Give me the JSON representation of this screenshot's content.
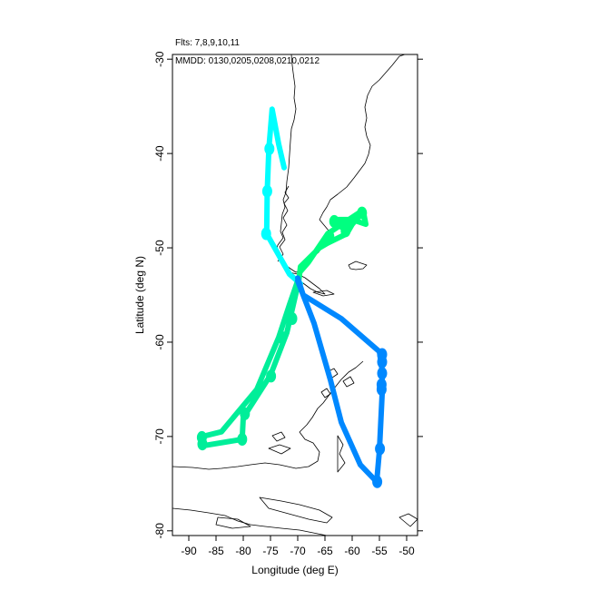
{
  "header": {
    "flights_line": "Flts: 7,8,9,10,11",
    "dates_line": "MMDD: 0130,0205,0208,0210,0212"
  },
  "chart_data": {
    "type": "map",
    "xlabel": "Longitude (deg E)",
    "ylabel": "Latitude (deg N)",
    "xlim": [
      -93,
      -48
    ],
    "ylim": [
      -80.5,
      -29.5
    ],
    "x_ticks": [
      -90,
      -85,
      -80,
      -75,
      -70,
      -65,
      -60,
      -55,
      -50
    ],
    "y_ticks": [
      -30,
      -40,
      -50,
      -60,
      -70,
      -80
    ],
    "grid": false,
    "flights": [
      {
        "color": "#00ffff",
        "points": [
          [
            -72.5,
            -41.5
          ],
          [
            -73.5,
            -39
          ],
          [
            -74.7,
            -35.3
          ],
          [
            -75.3,
            -39.5
          ],
          [
            -75.6,
            -44
          ],
          [
            -75.7,
            -48.5
          ],
          [
            -71.5,
            -52.8
          ],
          [
            -69.5,
            -53.8
          ]
        ],
        "markers": [
          [
            -75.2,
            -39.5
          ],
          [
            -75.6,
            -44
          ],
          [
            -75.8,
            -48.5
          ]
        ]
      },
      {
        "color": "#00ee99",
        "points": [
          [
            -70,
            -53.5
          ],
          [
            -71.5,
            -56
          ],
          [
            -73.5,
            -59.5
          ],
          [
            -77.5,
            -65
          ],
          [
            -84,
            -69.5
          ],
          [
            -87.5,
            -70
          ],
          [
            -87.6,
            -71
          ],
          [
            -80.2,
            -70.3
          ],
          [
            -80,
            -68
          ],
          [
            -75,
            -63.5
          ],
          [
            -72,
            -59
          ],
          [
            -70,
            -54
          ]
        ],
        "markers": [
          [
            -87.6,
            -70.1
          ],
          [
            -87.5,
            -70.8
          ],
          [
            -80.2,
            -70.3
          ],
          [
            -79.7,
            -67.6
          ],
          [
            -74.9,
            -63.6
          ],
          [
            -72.9,
            -59.5
          ],
          [
            -71,
            -57.5
          ]
        ]
      },
      {
        "color": "#00ff80",
        "points": [
          [
            -69.8,
            -53.5
          ],
          [
            -69.5,
            -52
          ],
          [
            -66,
            -50
          ],
          [
            -64.5,
            -49.5
          ],
          [
            -61,
            -48.5
          ],
          [
            -60,
            -47.5
          ],
          [
            -58.5,
            -46.5
          ],
          [
            -62,
            -47.8
          ],
          [
            -63.5,
            -47
          ],
          [
            -60,
            -47
          ],
          [
            -57.5,
            -47.5
          ],
          [
            -58,
            -46
          ],
          [
            -64.5,
            -48.5
          ],
          [
            -68,
            -51.5
          ],
          [
            -69.5,
            -52.5
          ]
        ],
        "markers": [
          [
            -63.3,
            -47.2
          ],
          [
            -58.2,
            -46.3
          ],
          [
            -64.2,
            -48.8
          ],
          [
            -61.2,
            -48.2
          ]
        ]
      },
      {
        "color": "#0088ff",
        "points": [
          [
            -70,
            -53.2
          ],
          [
            -69,
            -55
          ],
          [
            -62,
            -57.5
          ],
          [
            -55,
            -61
          ],
          [
            -54.5,
            -63
          ],
          [
            -54.5,
            -65.5
          ],
          [
            -55,
            -71.5
          ],
          [
            -55.5,
            -74.8
          ],
          [
            -58.5,
            -73
          ],
          [
            -62,
            -68.5
          ],
          [
            -64,
            -64
          ],
          [
            -67,
            -58
          ],
          [
            -70,
            -53.5
          ]
        ],
        "markers": [
          [
            -54.5,
            -61.3
          ],
          [
            -54.5,
            -62.1
          ],
          [
            -54.5,
            -63.3
          ],
          [
            -54.6,
            -64.5
          ],
          [
            -54.6,
            -65
          ],
          [
            -54.9,
            -71.3
          ],
          [
            -55.4,
            -74.8
          ]
        ]
      }
    ]
  }
}
